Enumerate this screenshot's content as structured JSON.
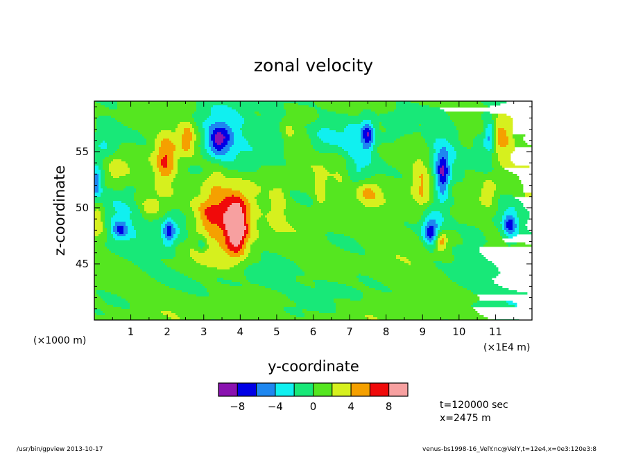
{
  "chart_data": {
    "type": "heatmap",
    "title": "zonal velocity",
    "xlabel": "y-coordinate",
    "ylabel": "z-coordinate",
    "x_offset_label": "(×1000 m)",
    "x_unit_label": "(×1E4 m)",
    "xlim": [
      0,
      12
    ],
    "ylim": [
      40,
      59.5
    ],
    "x_ticks": [
      {
        "v": 1,
        "label": "1"
      },
      {
        "v": 2,
        "label": "2"
      },
      {
        "v": 3,
        "label": "3"
      },
      {
        "v": 4,
        "label": "4"
      },
      {
        "v": 5,
        "label": "5"
      },
      {
        "v": 6,
        "label": "6"
      },
      {
        "v": 7,
        "label": "7"
      },
      {
        "v": 8,
        "label": "8"
      },
      {
        "v": 9,
        "label": "9"
      },
      {
        "v": 10,
        "label": "10"
      },
      {
        "v": 11,
        "label": "11"
      }
    ],
    "y_ticks": [
      {
        "v": 45,
        "label": "45"
      },
      {
        "v": 50,
        "label": "50"
      },
      {
        "v": 55,
        "label": "55"
      }
    ],
    "colorbar": {
      "levels": [
        -10,
        -8,
        -6,
        -4,
        -2,
        0,
        2,
        4,
        6,
        8,
        10
      ],
      "colors": [
        "#8a12b0",
        "#0000e6",
        "#1e87f0",
        "#10f0f0",
        "#18e878",
        "#55e620",
        "#d6f01e",
        "#f5a000",
        "#f00a0a",
        "#f7a0a0"
      ],
      "tick_labels": [
        {
          "v": -8,
          "label": "−8"
        },
        {
          "v": -4,
          "label": "−4"
        },
        {
          "v": 0,
          "label": "0"
        },
        {
          "v": 4,
          "label": "4"
        },
        {
          "v": 8,
          "label": "8"
        }
      ]
    },
    "background_value": 0.8,
    "features": [
      {
        "x": 3.9,
        "z": 48.2,
        "a": 9.5,
        "sx": 0.22,
        "sz": 1.6
      },
      {
        "x": 3.5,
        "z": 49.5,
        "a": 5.0,
        "sx": 0.55,
        "sz": 1.8
      },
      {
        "x": 3.2,
        "z": 49.2,
        "a": 2.8,
        "sx": 0.25,
        "sz": 1.0
      },
      {
        "x": 1.95,
        "z": 54.2,
        "a": 5.8,
        "sx": 0.22,
        "sz": 1.8
      },
      {
        "x": 2.55,
        "z": 56.2,
        "a": 4.5,
        "sx": 0.16,
        "sz": 1.1
      },
      {
        "x": 7.5,
        "z": 51.5,
        "a": 5.3,
        "sx": 0.3,
        "sz": 0.9
      },
      {
        "x": 11.1,
        "z": 56.2,
        "a": 5.3,
        "sx": 0.25,
        "sz": 1.4
      },
      {
        "x": 10.8,
        "z": 51.3,
        "a": 3.6,
        "sx": 0.18,
        "sz": 1.0
      },
      {
        "x": 9.5,
        "z": 47.0,
        "a": 6.0,
        "sx": 0.12,
        "sz": 0.6
      },
      {
        "x": 9.0,
        "z": 52.3,
        "a": 4.2,
        "sx": 0.2,
        "sz": 1.8
      },
      {
        "x": 5.05,
        "z": 50.3,
        "a": 3.2,
        "sx": 0.15,
        "sz": 1.3
      },
      {
        "x": 6.2,
        "z": 51.5,
        "a": 3.1,
        "sx": 0.12,
        "sz": 1.2
      },
      {
        "x": 0.55,
        "z": 53.5,
        "a": 2.9,
        "sx": 0.2,
        "sz": 1.0
      },
      {
        "x": 5.3,
        "z": 56.7,
        "a": 2.6,
        "sx": 0.15,
        "sz": 1.0
      },
      {
        "x": 6.8,
        "z": 53.0,
        "a": 2.4,
        "sx": 0.2,
        "sz": 1.2
      },
      {
        "x": 0.1,
        "z": 49.0,
        "a": 3.4,
        "sx": 0.12,
        "sz": 1.0
      },
      {
        "x": 11.9,
        "z": 52.0,
        "a": 2.6,
        "sx": 0.15,
        "sz": 1.0
      },
      {
        "x": 3.3,
        "z": 52.8,
        "a": 2.3,
        "sx": 0.2,
        "sz": 0.9
      },
      {
        "x": 1.5,
        "z": 50.0,
        "a": 2.3,
        "sx": 0.2,
        "sz": 0.8
      },
      {
        "x": 3.3,
        "z": 45.2,
        "a": 1.4,
        "sx": 0.7,
        "sz": 0.8
      },
      {
        "x": 8.5,
        "z": 43.5,
        "a": 1.3,
        "sx": 0.8,
        "sz": 0.9
      },
      {
        "x": 3.4,
        "z": 56.0,
        "a": -6.6,
        "sx": 0.22,
        "sz": 0.9
      },
      {
        "x": 3.6,
        "z": 56.4,
        "a": -4.0,
        "sx": 0.55,
        "sz": 2.3
      },
      {
        "x": 7.5,
        "z": 56.5,
        "a": -6.3,
        "sx": 0.12,
        "sz": 0.9
      },
      {
        "x": 7.2,
        "z": 54.5,
        "a": -3.6,
        "sx": 0.4,
        "sz": 3.0
      },
      {
        "x": 9.55,
        "z": 52.8,
        "a": -6.2,
        "sx": 0.12,
        "sz": 1.4
      },
      {
        "x": 9.5,
        "z": 54.0,
        "a": -3.5,
        "sx": 0.35,
        "sz": 2.8
      },
      {
        "x": 10.85,
        "z": 56.5,
        "a": -5.8,
        "sx": 0.1,
        "sz": 0.9
      },
      {
        "x": 10.8,
        "z": 55.8,
        "a": -3.1,
        "sx": 0.25,
        "sz": 2.2
      },
      {
        "x": 11.4,
        "z": 48.5,
        "a": -5.5,
        "sx": 0.12,
        "sz": 0.7
      },
      {
        "x": 11.4,
        "z": 48.5,
        "a": -3.0,
        "sx": 0.3,
        "sz": 1.2
      },
      {
        "x": 2.05,
        "z": 47.8,
        "a": -5.2,
        "sx": 0.12,
        "sz": 0.8
      },
      {
        "x": 2.2,
        "z": 48.5,
        "a": -2.9,
        "sx": 0.4,
        "sz": 1.3
      },
      {
        "x": 0.7,
        "z": 48.0,
        "a": -4.8,
        "sx": 0.15,
        "sz": 0.6
      },
      {
        "x": 0.8,
        "z": 49.0,
        "a": -3.1,
        "sx": 0.45,
        "sz": 1.6
      },
      {
        "x": 0.05,
        "z": 52.3,
        "a": -5.8,
        "sx": 0.1,
        "sz": 0.9
      },
      {
        "x": 0.3,
        "z": 55.5,
        "a": -3.0,
        "sx": 0.3,
        "sz": 2.0
      },
      {
        "x": 2.95,
        "z": 46.8,
        "a": -3.0,
        "sx": 0.1,
        "sz": 0.6
      },
      {
        "x": 5.0,
        "z": 57.0,
        "a": -2.8,
        "sx": 0.35,
        "sz": 1.6
      },
      {
        "x": 6.3,
        "z": 56.5,
        "a": -2.3,
        "sx": 0.3,
        "sz": 1.2
      },
      {
        "x": 9.2,
        "z": 47.8,
        "a": -4.6,
        "sx": 0.15,
        "sz": 0.8
      },
      {
        "x": 9.3,
        "z": 48.0,
        "a": -2.9,
        "sx": 0.2,
        "sz": 1.5
      },
      {
        "x": 10.4,
        "z": 47.5,
        "a": -2.4,
        "sx": 0.3,
        "sz": 1.0
      },
      {
        "x": 8.3,
        "z": 57.0,
        "a": -2.3,
        "sx": 0.25,
        "sz": 1.2
      },
      {
        "x": 4.5,
        "z": 43.5,
        "a": -1.7,
        "sx": 0.8,
        "sz": 1.2
      },
      {
        "x": 1.5,
        "z": 44.5,
        "a": -1.5,
        "sx": 0.7,
        "sz": 1.2
      },
      {
        "x": 6.7,
        "z": 43.0,
        "a": -1.5,
        "sx": 0.8,
        "sz": 1.2
      },
      {
        "x": 10.2,
        "z": 43.2,
        "a": -1.6,
        "sx": 0.7,
        "sz": 1.3
      },
      {
        "x": 11.5,
        "z": 41.5,
        "a": -1.5,
        "sx": 0.6,
        "sz": 1.1
      }
    ]
  },
  "info": {
    "time": "t=120000 sec",
    "position": "x=2475 m"
  },
  "footer": {
    "left": "/usr/bin/gpview   2013-10-17",
    "right": "venus-bs1998-16_VelY.nc@VelY,t=12e4,x=0e3:120e3:8"
  }
}
